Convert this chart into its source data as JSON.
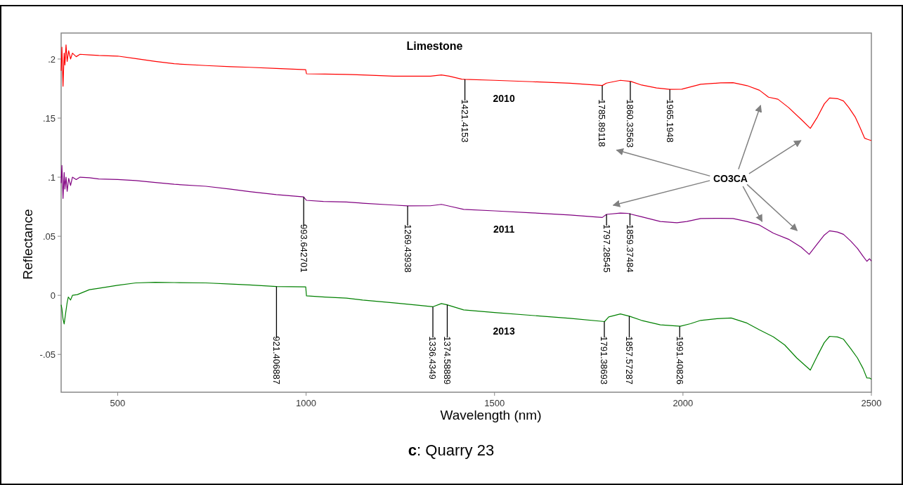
{
  "chart_data": {
    "type": "line",
    "title": "Limestone",
    "xlabel": "Wavelength (nm)",
    "ylabel": "Reflectance",
    "xlim": [
      350,
      2500
    ],
    "xticks": [
      500,
      1000,
      1500,
      2000,
      2500
    ],
    "ylim": [
      -0.082,
      0.222
    ],
    "yticks": [
      {
        "value": -0.05,
        "label": "-.05"
      },
      {
        "value": 0,
        "label": "0"
      },
      {
        "value": 0.05,
        "label": ".05"
      },
      {
        "value": 0.1,
        "label": ".1"
      },
      {
        "value": 0.15,
        "label": ".15"
      },
      {
        "value": 0.2,
        "label": ".2"
      }
    ],
    "grid": false,
    "series": [
      {
        "name": "2010",
        "color": "#ff0000",
        "x": [
          350,
          352,
          355,
          358,
          360,
          363,
          366,
          370,
          375,
          380,
          390,
          400,
          425,
          450,
          500,
          548,
          600,
          650,
          734,
          800,
          850,
          921,
          999,
          1001,
          1050,
          1107,
          1150,
          1233,
          1270,
          1330,
          1359,
          1380,
          1413,
          1421,
          1500,
          1600,
          1700,
          1786,
          1797,
          1834,
          1862,
          1890,
          1930,
          1965,
          1997,
          2047,
          2100,
          2133,
          2170,
          2203,
          2227,
          2252,
          2280,
          2314,
          2338,
          2357,
          2375,
          2389,
          2410,
          2426,
          2440,
          2457,
          2470,
          2482,
          2490,
          2500
        ],
        "values": [
          0.19,
          0.21,
          0.177,
          0.205,
          0.195,
          0.212,
          0.198,
          0.207,
          0.2,
          0.205,
          0.202,
          0.204,
          0.2035,
          0.203,
          0.2025,
          0.2004,
          0.198,
          0.196,
          0.1945,
          0.1935,
          0.193,
          0.192,
          0.191,
          0.1875,
          0.1873,
          0.187,
          0.1865,
          0.1855,
          0.1855,
          0.1855,
          0.1865,
          0.1855,
          0.183,
          0.1828,
          0.182,
          0.1808,
          0.1795,
          0.1776,
          0.1796,
          0.182,
          0.181,
          0.178,
          0.1755,
          0.1743,
          0.1745,
          0.1786,
          0.1798,
          0.18,
          0.1775,
          0.1736,
          0.1677,
          0.166,
          0.159,
          0.1488,
          0.1413,
          0.151,
          0.162,
          0.167,
          0.1665,
          0.1645,
          0.159,
          0.151,
          0.142,
          0.133,
          0.132,
          0.131
        ]
      },
      {
        "name": "2011",
        "color": "#800080",
        "x": [
          350,
          352,
          355,
          358,
          360,
          363,
          366,
          370,
          375,
          380,
          390,
          400,
          425,
          450,
          500,
          548,
          600,
          650,
          734,
          800,
          850,
          921,
          993.6,
          1001,
          1046,
          1107,
          1150,
          1233,
          1269,
          1330,
          1359,
          1380,
          1418,
          1500,
          1600,
          1700,
          1786,
          1797,
          1834,
          1853,
          1890,
          1940,
          1984,
          2010,
          2047,
          2100,
          2133,
          2170,
          2203,
          2240,
          2280,
          2314,
          2335,
          2357,
          2375,
          2389,
          2410,
          2426,
          2445,
          2463,
          2478,
          2488,
          2495,
          2500
        ],
        "values": [
          0.095,
          0.11,
          0.082,
          0.104,
          0.09,
          0.1,
          0.088,
          0.099,
          0.093,
          0.1,
          0.098,
          0.1,
          0.0995,
          0.0985,
          0.098,
          0.0972,
          0.0955,
          0.094,
          0.0923,
          0.0898,
          0.0878,
          0.0853,
          0.0833,
          0.0804,
          0.0794,
          0.079,
          0.078,
          0.0764,
          0.0757,
          0.0758,
          0.077,
          0.0755,
          0.0728,
          0.0715,
          0.0698,
          0.068,
          0.0659,
          0.0685,
          0.0696,
          0.0694,
          0.0665,
          0.0625,
          0.0615,
          0.0625,
          0.065,
          0.0652,
          0.065,
          0.0625,
          0.0595,
          0.0526,
          0.0475,
          0.0407,
          0.0347,
          0.0437,
          0.051,
          0.0546,
          0.0536,
          0.0516,
          0.046,
          0.0397,
          0.033,
          0.0288,
          0.031,
          0.029
        ]
      },
      {
        "name": "2013",
        "color": "#008000",
        "x": [
          350,
          352,
          355,
          358,
          362,
          366,
          369,
          375,
          380,
          393,
          425,
          450,
          500,
          548,
          600,
          650,
          734,
          800,
          850,
          921,
          999,
          1001,
          1050,
          1107,
          1150,
          1233,
          1300,
          1336,
          1359,
          1374,
          1418,
          1500,
          1600,
          1700,
          1792,
          1803,
          1834,
          1858,
          1890,
          1940,
          1993,
          2020,
          2047,
          2090,
          2128,
          2170,
          2203,
          2240,
          2270,
          2302,
          2338,
          2357,
          2375,
          2389,
          2410,
          2426,
          2445,
          2463,
          2478,
          2488,
          2495,
          2500
        ],
        "values": [
          -0.008,
          -0.0113,
          -0.02,
          -0.0242,
          -0.015,
          -0.006,
          -0.0014,
          -0.004,
          0.0,
          0.0006,
          0.0048,
          0.006,
          0.0085,
          0.0105,
          0.011,
          0.0108,
          0.0105,
          0.0095,
          0.0088,
          0.0075,
          0.0072,
          -0.0004,
          -0.0015,
          -0.0024,
          -0.004,
          -0.0064,
          -0.0085,
          -0.0097,
          -0.007,
          -0.008,
          -0.0123,
          -0.0145,
          -0.017,
          -0.0195,
          -0.0222,
          -0.0183,
          -0.0157,
          -0.0177,
          -0.0212,
          -0.025,
          -0.0262,
          -0.024,
          -0.0212,
          -0.0198,
          -0.0192,
          -0.0235,
          -0.0292,
          -0.0351,
          -0.042,
          -0.053,
          -0.0633,
          -0.051,
          -0.04,
          -0.0347,
          -0.0352,
          -0.0371,
          -0.045,
          -0.053,
          -0.062,
          -0.0699,
          -0.07,
          -0.071
        ]
      }
    ],
    "annotations": [
      {
        "text": "1421.4153",
        "x": 1421.4153,
        "y": 0.1828
      },
      {
        "text": "1785.89118",
        "x": 1785.89118,
        "y": 0.1776
      },
      {
        "text": "1860.33563",
        "x": 1860.33563,
        "y": 0.181
      },
      {
        "text": "1965.1948",
        "x": 1965.1948,
        "y": 0.1743
      },
      {
        "text": "993.642701",
        "x": 993.642701,
        "y": 0.0833
      },
      {
        "text": "1269.43938",
        "x": 1269.43938,
        "y": 0.0757
      },
      {
        "text": "1797.28545",
        "x": 1797.28545,
        "y": 0.0685
      },
      {
        "text": "1859.37484",
        "x": 1859.37484,
        "y": 0.0694
      },
      {
        "text": "921.406887",
        "x": 921.406887,
        "y": 0.0075
      },
      {
        "text": "1336.4349",
        "x": 1336.4349,
        "y": -0.0097
      },
      {
        "text": "1374.58889",
        "x": 1374.58889,
        "y": -0.008
      },
      {
        "text": "1791.38693",
        "x": 1791.38693,
        "y": -0.0222
      },
      {
        "text": "1857.57287",
        "x": 1857.57287,
        "y": -0.0177
      },
      {
        "text": "1991.40826",
        "x": 1991.40826,
        "y": -0.0262
      },
      "CO3CA",
      "c: Quarry 23"
    ]
  }
}
